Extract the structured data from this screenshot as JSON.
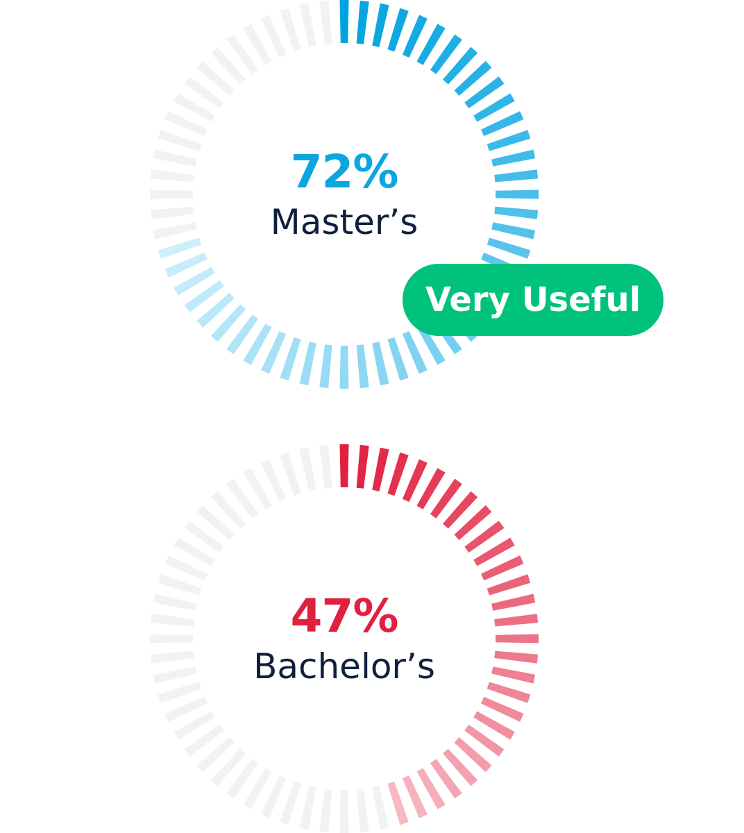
{
  "chart_data": [
    {
      "type": "radial-gauge",
      "value": 72,
      "display_value": "72%",
      "label": "Master’s",
      "colors": {
        "start": "#cdeffb",
        "end": "#00a3e0",
        "empty": "#f2f2f2",
        "text": "#0aa6e0"
      }
    },
    {
      "type": "radial-gauge",
      "value": 47,
      "display_value": "47%",
      "label": "Bachelor’s",
      "colors": {
        "start": "#f7b8c2",
        "end": "#e0203f",
        "empty": "#f2f2f2",
        "text": "#e0203f"
      }
    }
  ],
  "badge": {
    "label": "Very Useful",
    "color": "#00c27c"
  }
}
